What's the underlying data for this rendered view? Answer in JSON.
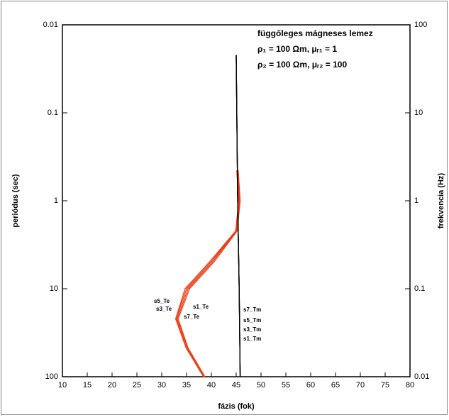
{
  "chart_data": {
    "type": "line",
    "xlabel": "fázis (fok)",
    "ylabel": "periódus (sec)",
    "y2label": "frekvencia (Hz)",
    "annotations": [
      "függőleges mágneses lemez",
      "ρ₁ = 100 Ωm, μᵣ₁ = 1",
      "ρ₂ = 100 Ωm, μᵣ₂ = 100"
    ],
    "xlim": [
      10,
      80
    ],
    "xticks": [
      10,
      15,
      20,
      25,
      30,
      35,
      40,
      45,
      50,
      55,
      60,
      65,
      70,
      75,
      80
    ],
    "ylim": [
      100,
      0.01
    ],
    "ylog": true,
    "yticks": [
      0.01,
      0.1,
      1,
      10,
      100
    ],
    "y2lim": [
      0.01,
      100
    ],
    "y2log": true,
    "y2ticks": [
      100,
      10,
      1,
      0.1,
      0.01
    ],
    "series": [
      {
        "name": "s5_Te",
        "color": "#e8401c",
        "x": [
          45.3,
          45.7,
          45.1,
          40.3,
          35.3,
          33.1,
          35.2,
          38.6
        ],
        "values": [
          0.45,
          1,
          2.2,
          4.9,
          10,
          22,
          47,
          100
        ]
      },
      {
        "name": "s3_Te",
        "color": "#e8401c",
        "x": [
          45.2,
          45.6,
          45,
          40,
          35,
          32.9,
          35,
          38.5
        ],
        "values": [
          0.45,
          1,
          2.2,
          4.9,
          10,
          22,
          47,
          100
        ]
      },
      {
        "name": "s1_Te",
        "color": "#e8401c",
        "x": [
          45.4,
          45.8,
          45.2,
          40.6,
          35.6,
          33.3,
          35.3,
          38.7
        ],
        "values": [
          0.45,
          1,
          2.2,
          4.9,
          10,
          22,
          47,
          100
        ]
      },
      {
        "name": "s7_Te",
        "color": "#e8401c",
        "x": [
          45.1,
          45.5,
          44.9,
          39.7,
          34.7,
          32.8,
          34.9,
          38.4
        ],
        "values": [
          0.45,
          1,
          2.2,
          4.9,
          10,
          22,
          47,
          100
        ]
      },
      {
        "name": "s7_Tm",
        "color": "#000000",
        "x": [
          45,
          45.3,
          45.6,
          45.8
        ],
        "values": [
          0.022,
          1,
          10,
          100
        ]
      },
      {
        "name": "s5_Tm",
        "color": "#000000",
        "x": [
          45,
          45.3,
          45.6,
          45.8
        ],
        "values": [
          0.022,
          1,
          10,
          100
        ]
      },
      {
        "name": "s3_Tm",
        "color": "#000000",
        "x": [
          45,
          45.3,
          45.6,
          45.8
        ],
        "values": [
          0.022,
          1,
          10,
          100
        ]
      },
      {
        "name": "s1_Tm",
        "color": "#000000",
        "x": [
          45,
          45.3,
          45.6,
          45.8
        ],
        "values": [
          0.022,
          1,
          10,
          100
        ]
      }
    ]
  }
}
